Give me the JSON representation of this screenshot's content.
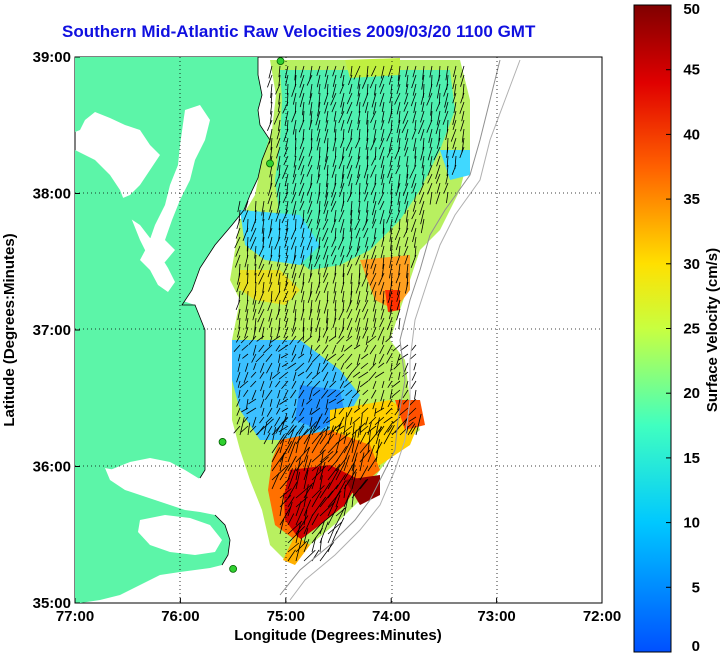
{
  "title": "Southern Mid-Atlantic Raw Velocities 2009/03/20 1100 GMT",
  "xlabel": "Longitude (Degrees:Minutes)",
  "ylabel": "Latitude (Degrees:Minutes)",
  "x_ticks": [
    "77:00",
    "76:00",
    "75:00",
    "74:00",
    "73:00",
    "72:00"
  ],
  "y_ticks": [
    "39:00",
    "38:00",
    "37:00",
    "36:00",
    "35:00"
  ],
  "colorbar": {
    "label": "Surface Velocity (cm/s)",
    "ticks": [
      "0",
      "5",
      "10",
      "15",
      "20",
      "25",
      "30",
      "35",
      "40",
      "45",
      "50"
    ],
    "range": [
      0,
      50
    ]
  },
  "colors": {
    "land": "#5cf5a8",
    "title": "#1010e0",
    "station": "#30d030",
    "arrow": "#000000"
  },
  "extent": {
    "lon": [
      -77,
      -72
    ],
    "lat": [
      35,
      39
    ]
  },
  "stations": [
    {
      "lon": -75.05,
      "lat": 38.97
    },
    {
      "lon": -75.15,
      "lat": 38.22
    },
    {
      "lon": -75.6,
      "lat": 36.18
    },
    {
      "lon": -75.5,
      "lat": 35.25
    }
  ]
}
